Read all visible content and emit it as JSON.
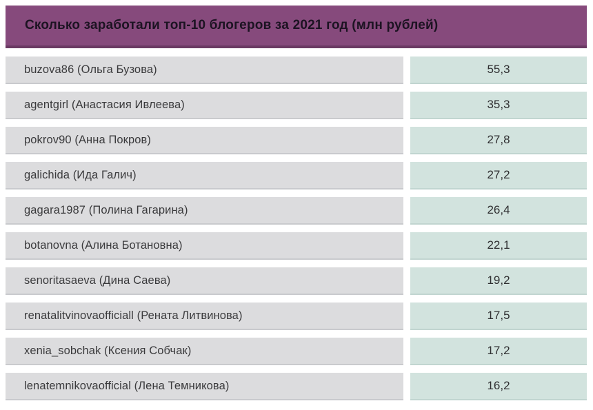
{
  "header": {
    "title": "Сколько заработали топ-10 блогеров за 2021 год (млн рублей)"
  },
  "colors": {
    "header_bg": "#864a7c",
    "header_border": "#6b3a63",
    "name_cell_bg": "#dcdcde",
    "value_cell_bg": "#d2e3de"
  },
  "rows": [
    {
      "label": "buzova86 (Ольга Бузова)",
      "value": "55,3"
    },
    {
      "label": "agentgirl (Анастасия Ивлеева)",
      "value": "35,3"
    },
    {
      "label": "pokrov90 (Анна Покров)",
      "value": "27,8"
    },
    {
      "label": "galichida (Ида Галич)",
      "value": "27,2"
    },
    {
      "label": "gagara1987 (Полина Гагарина)",
      "value": "26,4"
    },
    {
      "label": "botanovna (Алина Ботановна)",
      "value": "22,1"
    },
    {
      "label": "senoritasaeva (Дина Саева)",
      "value": "19,2"
    },
    {
      "label": "renatalitvinovaofficiall (Рената Литвинова)",
      "value": "17,5"
    },
    {
      "label": "xenia_sobchak (Ксения Собчак)",
      "value": "17,2"
    },
    {
      "label": "lenatemnikovaofficial (Лена Темникова)",
      "value": "16,2"
    }
  ],
  "chart_data": {
    "type": "table",
    "title": "Сколько заработали топ-10 блогеров за 2021 год (млн рублей)",
    "unit": "млн рублей",
    "categories": [
      "buzova86 (Ольга Бузова)",
      "agentgirl (Анастасия Ивлеева)",
      "pokrov90 (Анна Покров)",
      "galichida (Ида Галич)",
      "gagara1987 (Полина Гагарина)",
      "botanovna (Алина Ботановна)",
      "senoritasaeva (Дина Саева)",
      "renatalitvinovaofficiall (Рената Литвинова)",
      "xenia_sobchak (Ксения Собчак)",
      "lenatemnikovaofficial (Лена Темникова)"
    ],
    "values": [
      55.3,
      35.3,
      27.8,
      27.2,
      26.4,
      22.1,
      19.2,
      17.5,
      17.2,
      16.2
    ]
  }
}
